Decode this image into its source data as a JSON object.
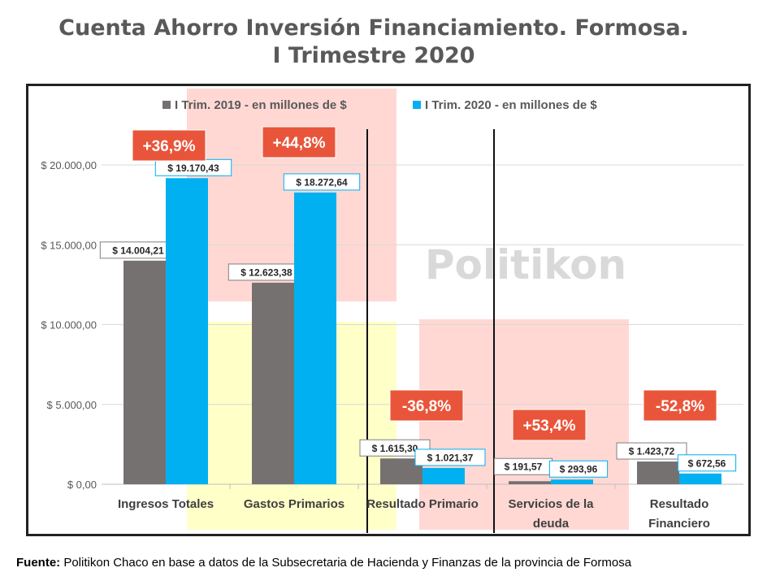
{
  "title": {
    "line1": "Cuenta Ahorro Inversión Financiamiento. Formosa.",
    "line2": "I Trimestre 2020"
  },
  "watermark": "Politikon",
  "source": {
    "label": "Fuente:",
    "text": " Politikon Chaco en base a datos de la Subsecretaria de Hacienda y Finanzas de la provincia de Formosa"
  },
  "chart_data": {
    "type": "bar",
    "categories": [
      [
        "Ingresos Totales"
      ],
      [
        "Gastos Primarios"
      ],
      [
        "Resultado Primario"
      ],
      [
        "Servicios de la",
        "deuda"
      ],
      [
        "Resultado",
        "Financiero"
      ]
    ],
    "series": [
      {
        "name": "I Trim. 2019 - en millones de $",
        "color": "#767171",
        "values": [
          14004.21,
          12623.38,
          1615.3,
          191.57,
          1423.72
        ],
        "labels": [
          "$ 14.004,21",
          "$ 12.623,38",
          "$ 1.615,30",
          "$ 191,57",
          "$ 1.423,72"
        ]
      },
      {
        "name": "I Trim. 2020 - en millones de $",
        "color": "#00B0F0",
        "values": [
          19170.43,
          18272.64,
          1021.37,
          293.96,
          672.56
        ],
        "labels": [
          "$ 19.170,43",
          "$ 18.272,64",
          "$ 1.021,37",
          "$ 293,96",
          "$ 672,56"
        ]
      }
    ],
    "variation_labels": [
      "+36,9%",
      "+44,8%",
      "-36,8%",
      "+53,4%",
      "-52,8%"
    ],
    "yticks": [
      0,
      5000,
      10000,
      15000,
      20000
    ],
    "ytick_labels": [
      "$ 0,00",
      "$ 5.000,00",
      "$ 10.000,00",
      "$ 15.000,00",
      "$ 20.000,00"
    ],
    "ylim": [
      0,
      20000
    ],
    "grid": true,
    "legend": "top-center",
    "colors": {
      "variation_box": "#E9553A",
      "highlight_red": "#FFD8D4",
      "highlight_yellow": "#FFFFC8",
      "separator": "#111111"
    }
  }
}
